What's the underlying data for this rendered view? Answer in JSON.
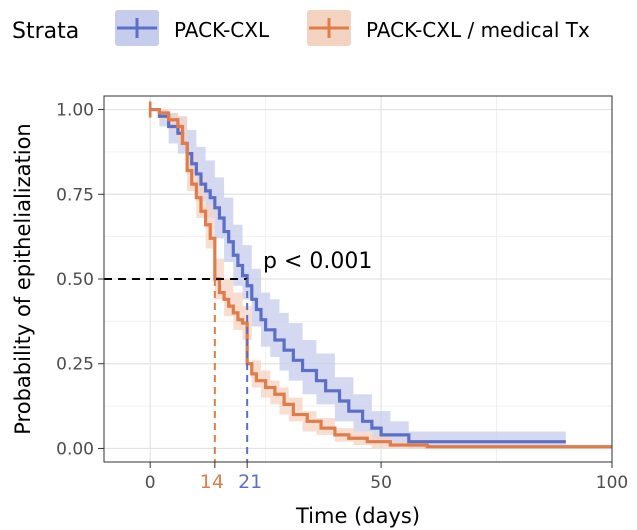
{
  "chart_data": {
    "type": "line",
    "subtype": "kaplan-meier",
    "legend": {
      "title": "Strata",
      "position": "top",
      "entries": [
        "PACK-CXL",
        "PACK-CXL / medical Tx"
      ]
    },
    "xlabel": "Time (days)",
    "ylabel": "Probability of epithelialization",
    "xlim": [
      -10,
      100
    ],
    "ylim": [
      -0.04,
      1.04
    ],
    "xticks": [
      0,
      50,
      100
    ],
    "yticks": [
      {
        "value": 0.0,
        "label": "0.00"
      },
      {
        "value": 0.25,
        "label": "0.25"
      },
      {
        "value": 0.5,
        "label": "0.50"
      },
      {
        "value": 0.75,
        "label": "0.75"
      },
      {
        "value": 1.0,
        "label": "1.00"
      }
    ],
    "grid": true,
    "annotation": "p < 0.001",
    "median_markers": [
      {
        "value": 14,
        "label": "14",
        "color": "#e07b4a"
      },
      {
        "value": 21,
        "label": "21",
        "color": "#5b6fc8"
      }
    ],
    "series": [
      {
        "name": "PACK-CXL",
        "color": "#5b6fc8",
        "band_color": "#c5ccec",
        "steps": [
          [
            0,
            1.0
          ],
          [
            2,
            0.98
          ],
          [
            4,
            0.95
          ],
          [
            6,
            0.93
          ],
          [
            7,
            0.9
          ],
          [
            8,
            0.87
          ],
          [
            9,
            0.84
          ],
          [
            10,
            0.81
          ],
          [
            11,
            0.78
          ],
          [
            12,
            0.76
          ],
          [
            13,
            0.74
          ],
          [
            14,
            0.71
          ],
          [
            15,
            0.68
          ],
          [
            16,
            0.64
          ],
          [
            17,
            0.61
          ],
          [
            18,
            0.57
          ],
          [
            19,
            0.54
          ],
          [
            20,
            0.51
          ],
          [
            21,
            0.48
          ],
          [
            22,
            0.44
          ],
          [
            23,
            0.41
          ],
          [
            24,
            0.38
          ],
          [
            25,
            0.35
          ],
          [
            27,
            0.32
          ],
          [
            29,
            0.29
          ],
          [
            31,
            0.26
          ],
          [
            33,
            0.23
          ],
          [
            36,
            0.2
          ],
          [
            38,
            0.17
          ],
          [
            41,
            0.14
          ],
          [
            43,
            0.11
          ],
          [
            46,
            0.08
          ],
          [
            48,
            0.06
          ],
          [
            50,
            0.04
          ],
          [
            56,
            0.02
          ],
          [
            90,
            0.02
          ]
        ],
        "lower": [
          [
            0,
            1.0
          ],
          [
            2,
            0.95
          ],
          [
            4,
            0.9
          ],
          [
            6,
            0.87
          ],
          [
            8,
            0.81
          ],
          [
            10,
            0.73
          ],
          [
            12,
            0.68
          ],
          [
            14,
            0.62
          ],
          [
            16,
            0.55
          ],
          [
            18,
            0.48
          ],
          [
            20,
            0.44
          ],
          [
            22,
            0.36
          ],
          [
            24,
            0.3
          ],
          [
            26,
            0.27
          ],
          [
            28,
            0.23
          ],
          [
            30,
            0.2
          ],
          [
            33,
            0.16
          ],
          [
            36,
            0.13
          ],
          [
            40,
            0.08
          ],
          [
            44,
            0.05
          ],
          [
            48,
            0.02
          ],
          [
            52,
            0.01
          ],
          [
            56,
            0.0
          ],
          [
            90,
            0.0
          ]
        ],
        "upper": [
          [
            0,
            1.0
          ],
          [
            2,
            1.0
          ],
          [
            4,
            0.99
          ],
          [
            6,
            0.98
          ],
          [
            8,
            0.94
          ],
          [
            10,
            0.89
          ],
          [
            12,
            0.85
          ],
          [
            14,
            0.8
          ],
          [
            16,
            0.74
          ],
          [
            18,
            0.66
          ],
          [
            20,
            0.6
          ],
          [
            22,
            0.53
          ],
          [
            24,
            0.46
          ],
          [
            26,
            0.44
          ],
          [
            28,
            0.4
          ],
          [
            30,
            0.37
          ],
          [
            33,
            0.32
          ],
          [
            36,
            0.28
          ],
          [
            40,
            0.21
          ],
          [
            44,
            0.16
          ],
          [
            48,
            0.11
          ],
          [
            52,
            0.08
          ],
          [
            56,
            0.05
          ],
          [
            90,
            0.05
          ]
        ]
      },
      {
        "name": "PACK-CXL / medical Tx",
        "color": "#e07b4a",
        "band_color": "#f4d3c1",
        "steps": [
          [
            0,
            1.0
          ],
          [
            2,
            0.99
          ],
          [
            4,
            0.97
          ],
          [
            6,
            0.95
          ],
          [
            7,
            0.9
          ],
          [
            8,
            0.82
          ],
          [
            9,
            0.78
          ],
          [
            10,
            0.74
          ],
          [
            11,
            0.7
          ],
          [
            12,
            0.66
          ],
          [
            13,
            0.62
          ],
          [
            14,
            0.5
          ],
          [
            15,
            0.46
          ],
          [
            16,
            0.44
          ],
          [
            17,
            0.42
          ],
          [
            18,
            0.4
          ],
          [
            19,
            0.38
          ],
          [
            20,
            0.37
          ],
          [
            21,
            0.25
          ],
          [
            22,
            0.22
          ],
          [
            23,
            0.2
          ],
          [
            25,
            0.18
          ],
          [
            27,
            0.16
          ],
          [
            29,
            0.13
          ],
          [
            31,
            0.1
          ],
          [
            34,
            0.08
          ],
          [
            37,
            0.06
          ],
          [
            40,
            0.04
          ],
          [
            43,
            0.03
          ],
          [
            47,
            0.02
          ],
          [
            52,
            0.01
          ],
          [
            60,
            0.005
          ],
          [
            100,
            0.005
          ]
        ],
        "lower": [
          [
            0,
            1.0
          ],
          [
            2,
            0.97
          ],
          [
            4,
            0.94
          ],
          [
            6,
            0.9
          ],
          [
            8,
            0.76
          ],
          [
            10,
            0.68
          ],
          [
            12,
            0.59
          ],
          [
            14,
            0.44
          ],
          [
            16,
            0.39
          ],
          [
            18,
            0.35
          ],
          [
            20,
            0.32
          ],
          [
            22,
            0.18
          ],
          [
            24,
            0.15
          ],
          [
            26,
            0.13
          ],
          [
            28,
            0.1
          ],
          [
            30,
            0.08
          ],
          [
            33,
            0.05
          ],
          [
            36,
            0.04
          ],
          [
            40,
            0.02
          ],
          [
            44,
            0.01
          ],
          [
            48,
            0.0
          ],
          [
            100,
            0.0
          ]
        ],
        "upper": [
          [
            0,
            1.0
          ],
          [
            2,
            1.0
          ],
          [
            4,
            0.99
          ],
          [
            6,
            0.98
          ],
          [
            8,
            0.87
          ],
          [
            10,
            0.8
          ],
          [
            12,
            0.72
          ],
          [
            14,
            0.56
          ],
          [
            16,
            0.5
          ],
          [
            18,
            0.46
          ],
          [
            20,
            0.42
          ],
          [
            22,
            0.26
          ],
          [
            24,
            0.23
          ],
          [
            26,
            0.2
          ],
          [
            28,
            0.18
          ],
          [
            30,
            0.15
          ],
          [
            33,
            0.11
          ],
          [
            36,
            0.09
          ],
          [
            40,
            0.06
          ],
          [
            44,
            0.05
          ],
          [
            48,
            0.04
          ],
          [
            52,
            0.02
          ],
          [
            60,
            0.01
          ],
          [
            100,
            0.01
          ]
        ]
      }
    ]
  }
}
